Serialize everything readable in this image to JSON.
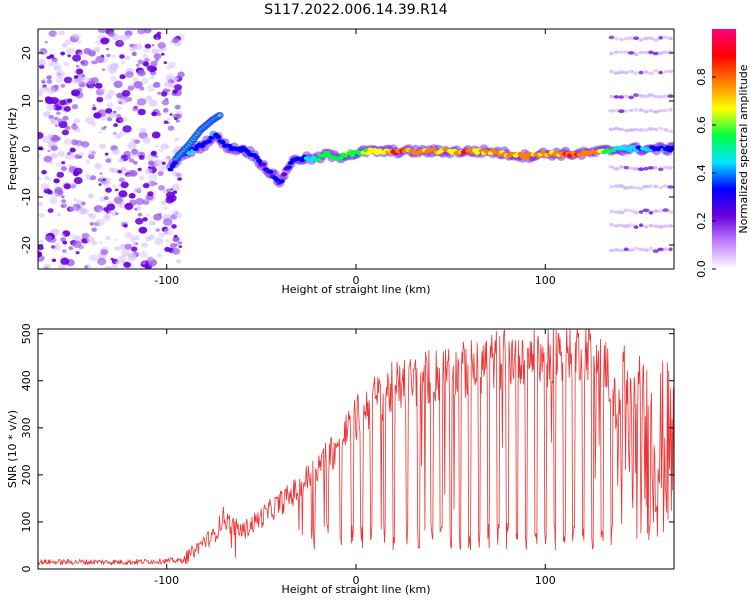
{
  "title": "S117.2022.006.14.39.R14",
  "chart_data": [
    {
      "type": "heatmap",
      "xlabel": "Height of straight line (km)",
      "ylabel": "Frequency (Hz)",
      "xlim": [
        -168,
        168
      ],
      "ylim": [
        -25,
        25
      ],
      "xticks": [
        -100,
        0,
        100
      ],
      "xtick_labels": [
        "-100",
        "0",
        "100"
      ],
      "yticks": [
        -20,
        -10,
        0,
        10,
        20
      ],
      "ytick_labels": [
        "-20",
        "-10",
        "0",
        "10",
        "20"
      ],
      "colorbar": {
        "label": "Normalized spectral amplitude",
        "range": [
          0,
          1
        ],
        "ticks": [
          0.0,
          0.2,
          0.4,
          0.6,
          0.8
        ],
        "tick_labels": [
          "0.0",
          "0.2",
          "0.4",
          "0.6",
          "0.8"
        ],
        "colors": [
          "#ffffff",
          "#c080ff",
          "#6a00e0",
          "#0000ff",
          "#00e5ff",
          "#00ff40",
          "#ffff00",
          "#ff8000",
          "#ff0000",
          "#ff0080"
        ]
      },
      "ridge": {
        "x": [
          -98,
          -92,
          -85,
          -80,
          -75,
          -70,
          -65,
          -60,
          -55,
          -50,
          -45,
          -40,
          -35,
          -30,
          -25,
          -20,
          -15,
          -10,
          -5,
          0,
          5,
          10,
          20,
          30,
          40,
          50,
          60,
          70,
          80,
          90,
          100,
          110,
          120,
          130,
          140,
          150,
          160,
          168
        ],
        "y": [
          -4,
          -1,
          0,
          1,
          3,
          1,
          0,
          0,
          -1,
          -3,
          -5,
          -7,
          -3,
          -2,
          -2,
          -2,
          -1,
          -2,
          -1,
          -1,
          -0.5,
          -0.5,
          -0.5,
          -0.5,
          -0.5,
          -0.5,
          -0.5,
          -0.5,
          -1,
          -1.5,
          -1,
          -1,
          -1,
          -0.5,
          0,
          0,
          0,
          0
        ],
        "amplitude": [
          0.35,
          0.4,
          0.45,
          0.4,
          0.4,
          0.35,
          0.35,
          0.35,
          0.35,
          0.3,
          0.3,
          0.3,
          0.35,
          0.4,
          0.45,
          0.55,
          0.6,
          0.6,
          0.65,
          0.65,
          0.7,
          0.75,
          0.85,
          0.85,
          0.85,
          0.85,
          0.85,
          0.8,
          0.85,
          0.85,
          0.8,
          0.85,
          0.85,
          0.75,
          0.5,
          0.45,
          0.4,
          0.4
        ]
      },
      "upper_branch": {
        "x": [
          -95,
          -88,
          -82,
          -76,
          -72
        ],
        "y": [
          -2,
          1,
          4,
          6,
          7
        ]
      },
      "noise_region_x": [
        -168,
        -92
      ],
      "harmonic_region_x": [
        135,
        168
      ],
      "harmonic_lines_y": [
        -21,
        -16,
        -13,
        -8,
        -4,
        4,
        8,
        11,
        16,
        20,
        23
      ]
    },
    {
      "type": "line",
      "xlabel": "Height of straight line (km)",
      "ylabel": "SNR (10 * v/v)",
      "xlim": [
        -168,
        168
      ],
      "ylim": [
        0,
        510
      ],
      "xticks": [
        -100,
        0,
        100
      ],
      "xtick_labels": [
        "-100",
        "0",
        "100"
      ],
      "yticks": [
        0,
        100,
        200,
        300,
        400,
        500
      ],
      "ytick_labels": [
        "0",
        "100",
        "200",
        "300",
        "400",
        "500"
      ],
      "color": "#ee3333",
      "envelope": {
        "x": [
          -168,
          -120,
          -92,
          -85,
          -80,
          -75,
          -70,
          -65,
          -60,
          -50,
          -40,
          -30,
          -20,
          -10,
          0,
          10,
          20,
          30,
          40,
          50,
          60,
          70,
          80,
          90,
          100,
          110,
          120,
          130,
          140,
          150,
          160,
          168
        ],
        "y": [
          15,
          15,
          18,
          40,
          60,
          70,
          110,
          90,
          80,
          110,
          140,
          170,
          220,
          260,
          320,
          360,
          385,
          400,
          410,
          415,
          425,
          440,
          450,
          460,
          445,
          470,
          465,
          470,
          300,
          250,
          240,
          230
        ]
      },
      "dropouts_x": [
        -22,
        -15,
        -8,
        -2,
        3,
        8,
        15,
        20,
        27,
        33,
        40,
        45,
        50,
        55,
        60,
        65,
        70,
        75,
        80,
        85,
        90,
        95,
        100,
        105,
        110,
        115,
        120,
        125,
        130,
        135
      ]
    }
  ]
}
